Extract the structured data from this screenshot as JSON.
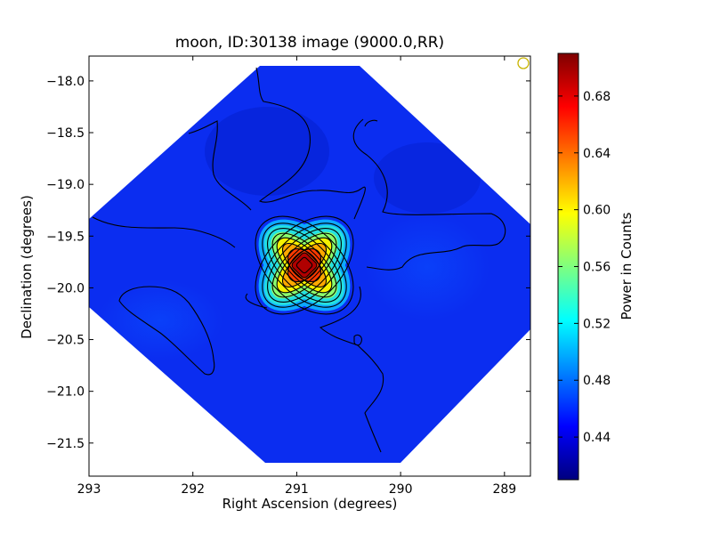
{
  "chart_data": {
    "type": "heatmap",
    "title": "moon, ID:30138 image (9000.0,RR)",
    "xlabel": "Right Ascension (degrees)",
    "ylabel": "Declination (degrees)",
    "colorbar_label": "Power in Counts",
    "colormap": "jet",
    "xlim": [
      293.0,
      288.75
    ],
    "ylim": [
      -21.82,
      -17.76
    ],
    "x_ticks": [
      293,
      292,
      291,
      290,
      289
    ],
    "x_tick_labels": [
      "293",
      "292",
      "291",
      "290",
      "289"
    ],
    "y_ticks": [
      -18.0,
      -18.5,
      -19.0,
      -19.5,
      -20.0,
      -20.5,
      -21.0,
      -21.5
    ],
    "y_tick_labels": [
      "−18.0",
      "−18.5",
      "−19.0",
      "−19.5",
      "−20.0",
      "−20.5",
      "−21.0",
      "−21.5"
    ],
    "colorbar_range": [
      0.41,
      0.71
    ],
    "colorbar_ticks": [
      0.44,
      0.48,
      0.52,
      0.56,
      0.6,
      0.64,
      0.68
    ],
    "colorbar_tick_labels": [
      "0.44",
      "0.48",
      "0.52",
      "0.56",
      "0.60",
      "0.64",
      "0.68"
    ],
    "background_level": 0.45,
    "peak": {
      "ra": 290.92,
      "dec": -19.8,
      "value": 0.7
    },
    "contour_levels": [
      0.46,
      0.48,
      0.5,
      0.52,
      0.54,
      0.56,
      0.58,
      0.6,
      0.62,
      0.64,
      0.66,
      0.68
    ],
    "marker": {
      "shape": "circle",
      "ra": 288.82,
      "dec": -17.83,
      "color": "#c8b400"
    },
    "grid": false
  }
}
